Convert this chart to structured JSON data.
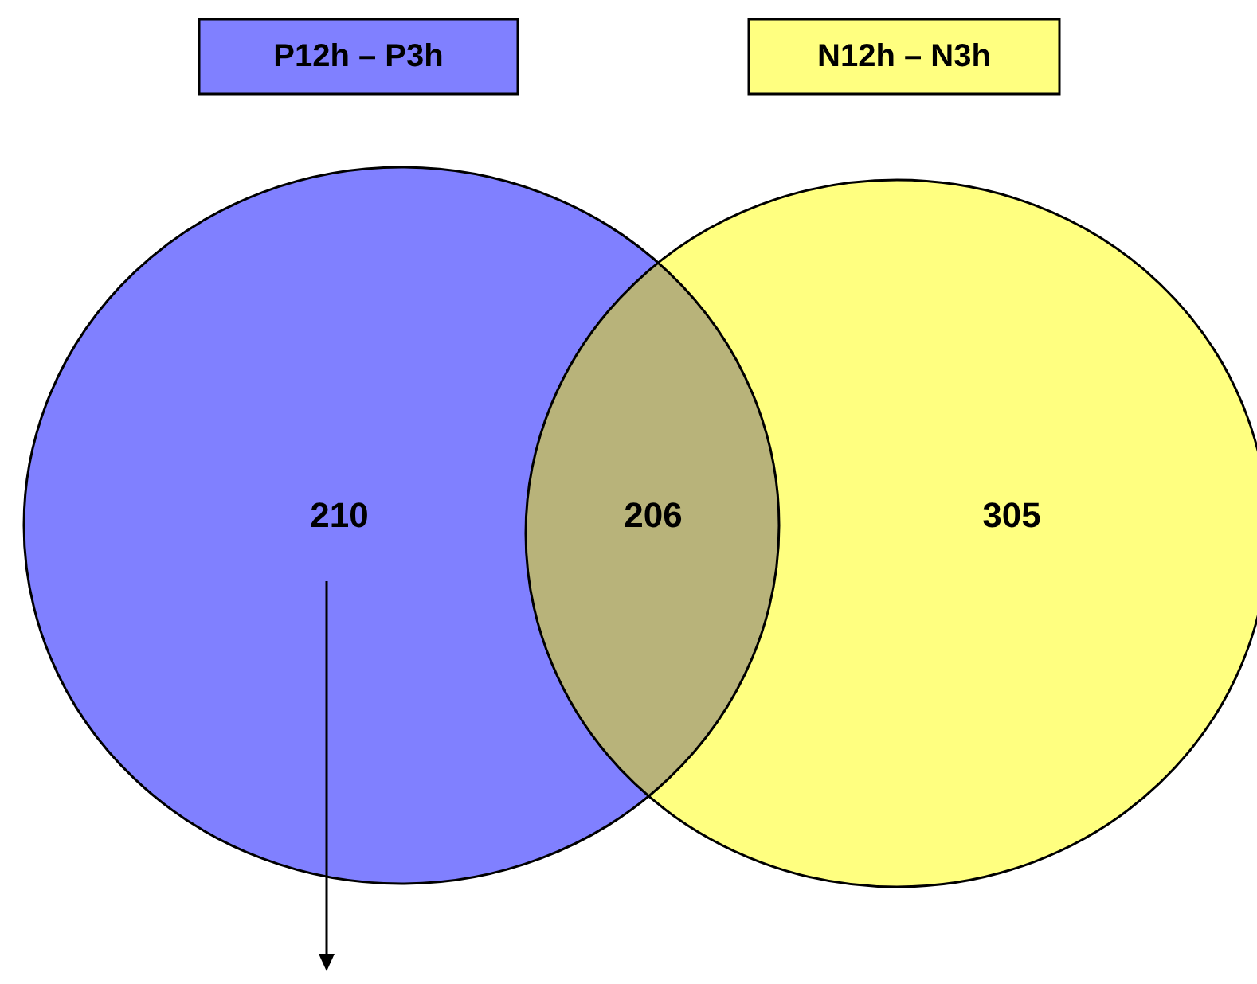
{
  "chart_data": {
    "type": "other",
    "categories": [
      "P12h – P3h",
      null,
      "N12h – N3h"
    ],
    "values": [
      210,
      206,
      305
    ],
    "colors": [
      "#8080ff",
      "#b8b37a",
      "#ffff80"
    ],
    "data_labels": true
  }
}
